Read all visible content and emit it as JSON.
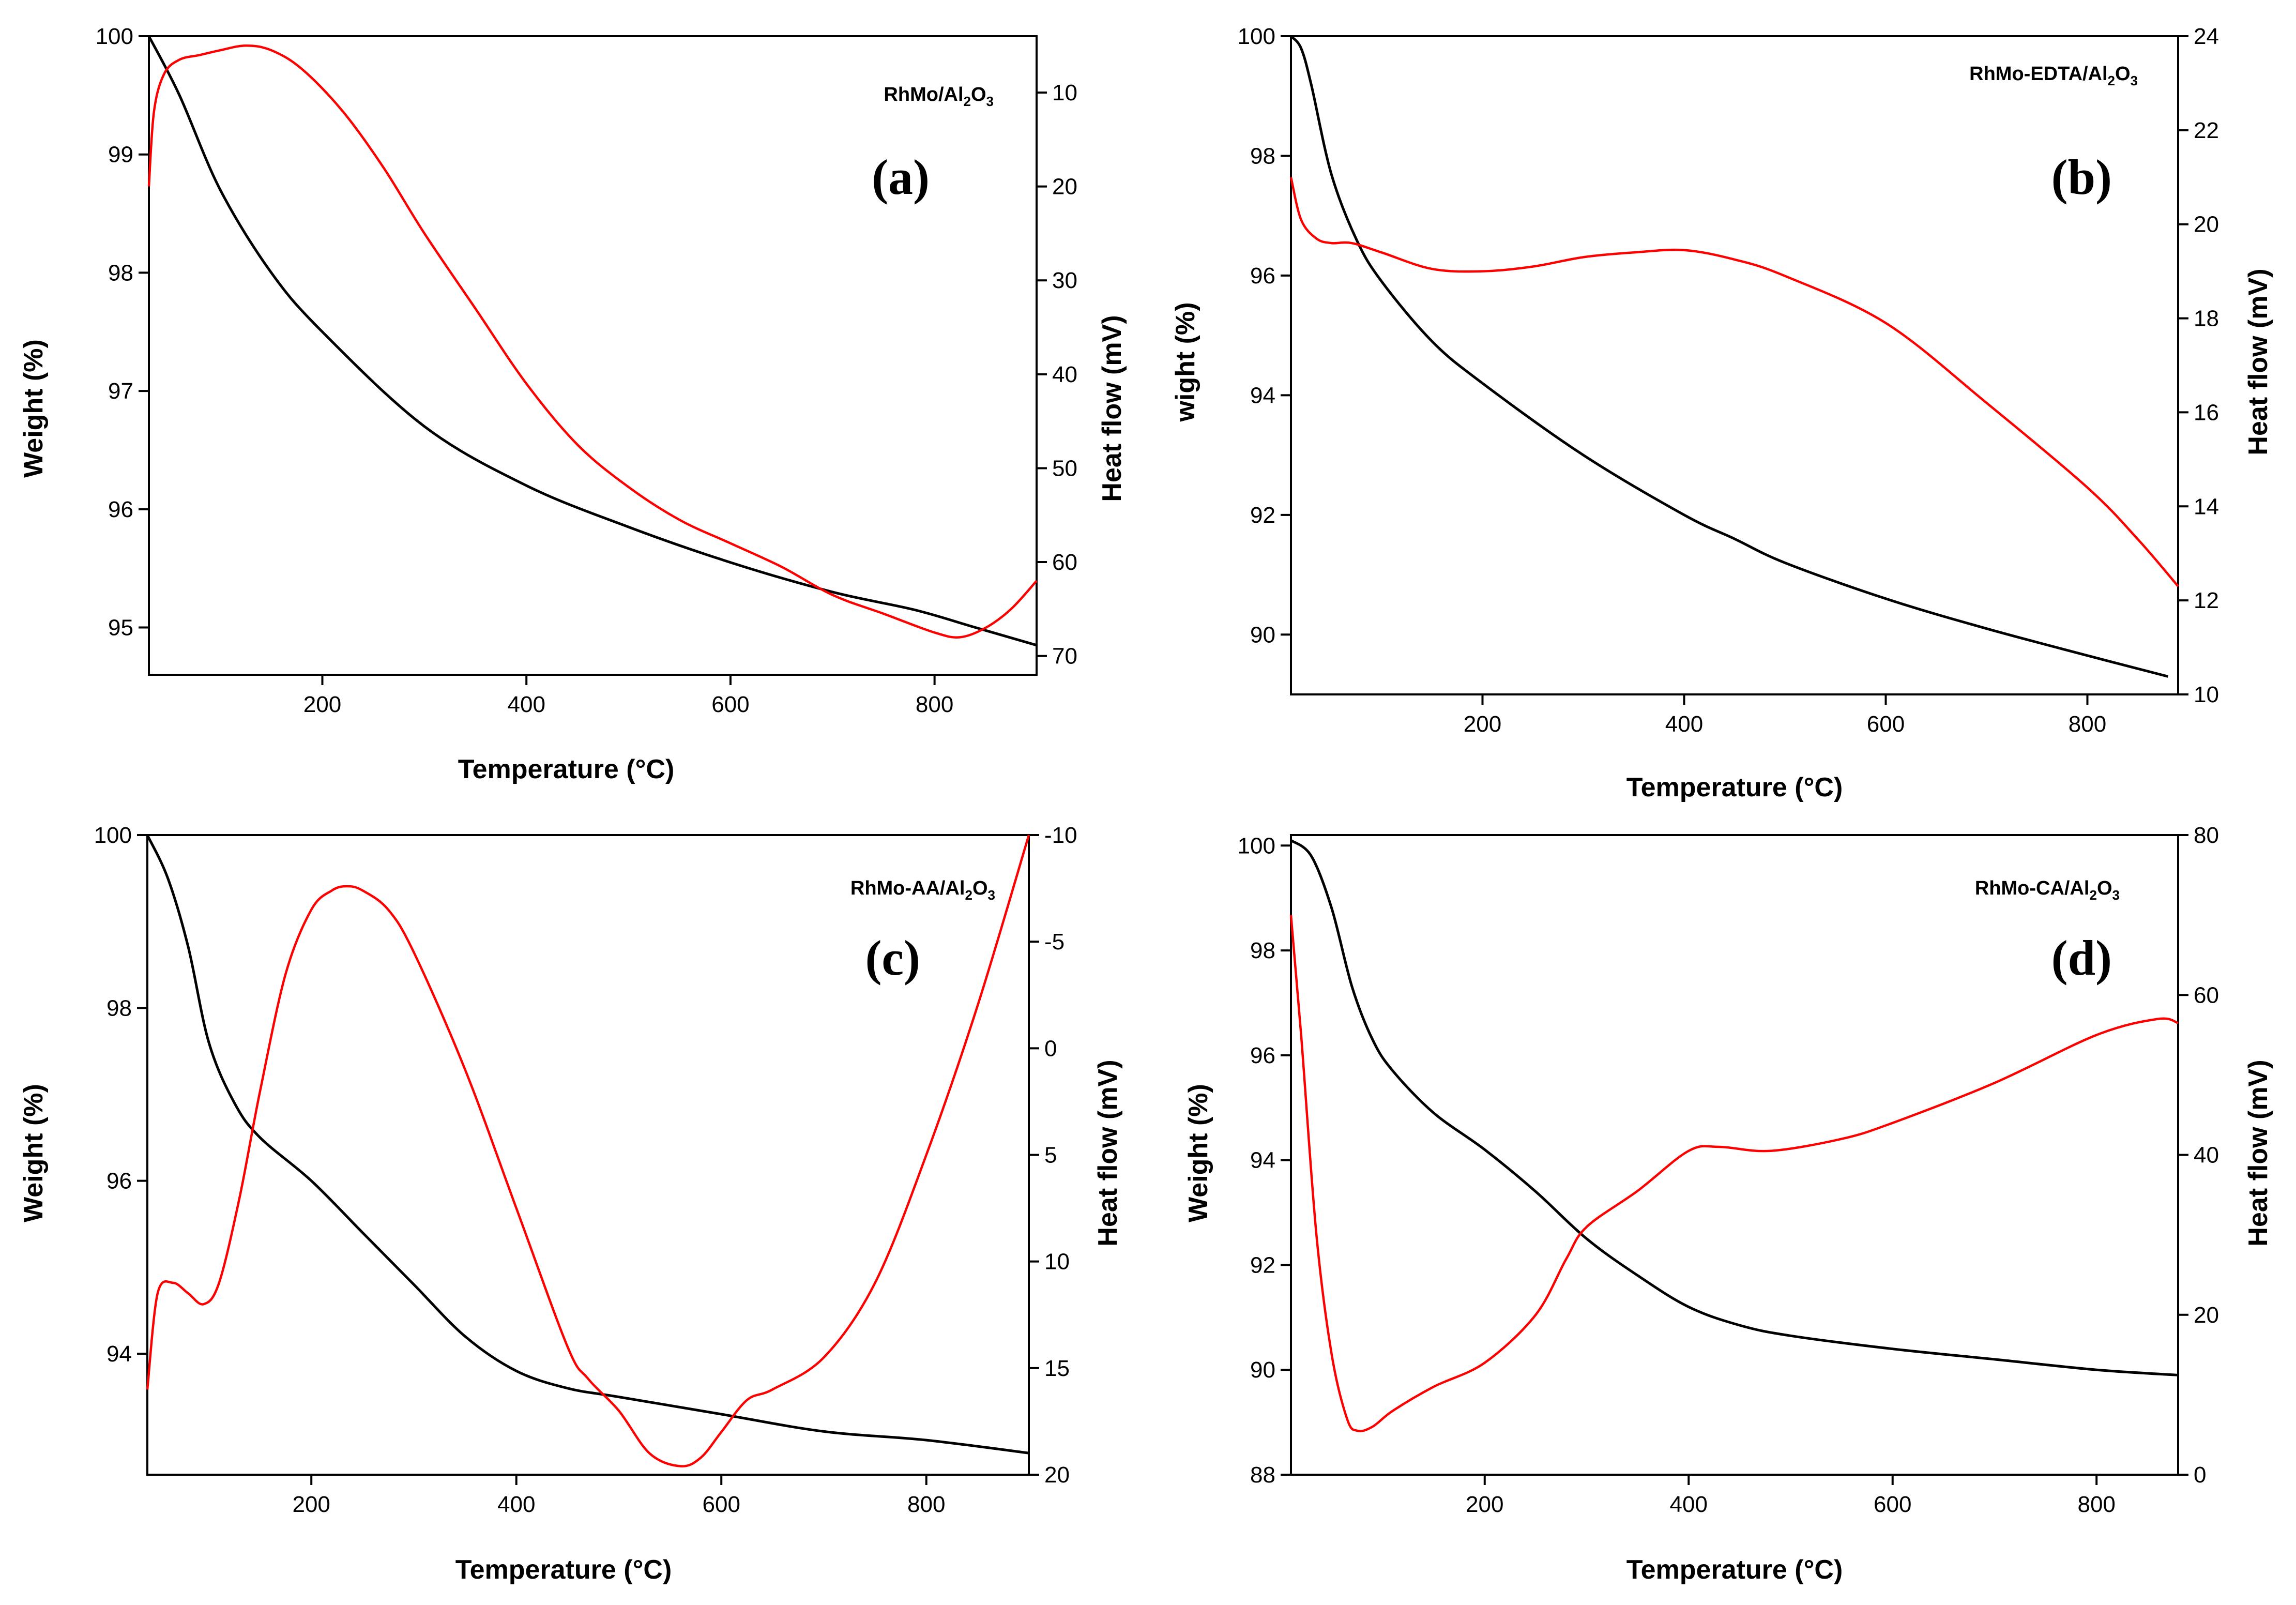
{
  "colors": {
    "weight_line": "#000000",
    "heat_flow_line": "#ff0000"
  },
  "chart_data": [
    {
      "type": "line",
      "panel_label": "(a)",
      "sample_label": {
        "main": "RhMo/Al",
        "sub1": "2",
        "mid": "O",
        "sub2": "3"
      },
      "xlabel": "Temperature (°C)",
      "ylabel_left": "Weight (%)",
      "ylabel_right": "Heat flow (mV)",
      "xlim": [
        30,
        900
      ],
      "ylim_left": [
        94.6,
        100
      ],
      "ylim_right": [
        4,
        72
      ],
      "right_inverted": true,
      "xticks": [
        "200",
        "400",
        "600",
        "800"
      ],
      "xtick_values": [
        200,
        400,
        600,
        800
      ],
      "yticks_left": [
        "95",
        "96",
        "97",
        "98",
        "99",
        "100"
      ],
      "ytick_left_values": [
        95,
        96,
        97,
        98,
        99,
        100
      ],
      "yticks_right": [
        "10",
        "20",
        "30",
        "40",
        "50",
        "60",
        "70"
      ],
      "ytick_right_values": [
        10,
        20,
        30,
        40,
        50,
        60,
        70
      ],
      "series": [
        {
          "name": "Weight",
          "axis": "left",
          "x": [
            30,
            60,
            100,
            150,
            200,
            300,
            400,
            500,
            600,
            700,
            780,
            840,
            900
          ],
          "y": [
            100,
            99.5,
            98.7,
            98.0,
            97.5,
            96.7,
            96.2,
            95.85,
            95.55,
            95.3,
            95.15,
            95.0,
            94.85
          ]
        },
        {
          "name": "Heat flow",
          "axis": "right",
          "x": [
            30,
            35,
            45,
            60,
            80,
            100,
            125,
            150,
            180,
            220,
            260,
            300,
            350,
            400,
            450,
            500,
            550,
            600,
            650,
            700,
            750,
            800,
            825,
            850,
            875,
            900
          ],
          "y": [
            20,
            12,
            8,
            6.5,
            6,
            5.5,
            5,
            5.5,
            7.5,
            12,
            18,
            25,
            33,
            41,
            47.5,
            52,
            55.5,
            58,
            60.5,
            63.5,
            65.5,
            67.5,
            68,
            67,
            65,
            62
          ]
        }
      ]
    },
    {
      "type": "line",
      "panel_label": "(b)",
      "sample_label": {
        "main": "RhMo-EDTA/Al",
        "sub1": "2",
        "mid": "O",
        "sub2": "3"
      },
      "xlabel": "Temperature (°C)",
      "ylabel_left": "wight (%)",
      "ylabel_right": "Heat flow (mV)",
      "xlim": [
        10,
        890
      ],
      "ylim_left": [
        89,
        100
      ],
      "ylim_right": [
        10,
        24
      ],
      "right_inverted": false,
      "xticks": [
        "200",
        "400",
        "600",
        "800"
      ],
      "xtick_values": [
        200,
        400,
        600,
        800
      ],
      "yticks_left": [
        "90",
        "92",
        "94",
        "96",
        "98",
        "100"
      ],
      "ytick_left_values": [
        90,
        92,
        94,
        96,
        98,
        100
      ],
      "yticks_right": [
        "10",
        "12",
        "14",
        "16",
        "18",
        "20",
        "22",
        "24"
      ],
      "ytick_right_values": [
        10,
        12,
        14,
        16,
        18,
        20,
        22,
        24
      ],
      "series": [
        {
          "name": "Weight",
          "axis": "left",
          "x": [
            10,
            20,
            30,
            50,
            75,
            100,
            150,
            200,
            300,
            400,
            450,
            500,
            600,
            700,
            800,
            880
          ],
          "y": [
            100,
            99.8,
            99.2,
            97.7,
            96.6,
            95.9,
            94.9,
            94.2,
            93.0,
            92.0,
            91.6,
            91.2,
            90.6,
            90.1,
            89.65,
            89.3
          ]
        },
        {
          "name": "Heat flow",
          "axis": "right",
          "x": [
            10,
            20,
            35,
            50,
            70,
            100,
            150,
            200,
            250,
            300,
            350,
            400,
            450,
            500,
            600,
            700,
            800,
            850,
            890
          ],
          "y": [
            21,
            20.1,
            19.7,
            19.6,
            19.6,
            19.4,
            19.05,
            19.0,
            19.1,
            19.3,
            19.4,
            19.45,
            19.25,
            18.9,
            17.9,
            16.2,
            14.4,
            13.3,
            12.3
          ]
        }
      ]
    },
    {
      "type": "line",
      "panel_label": "(c)",
      "sample_label": {
        "main": "RhMo-AA/Al",
        "sub1": "2",
        "mid": "O",
        "sub2": "3"
      },
      "xlabel": "Temperature (°C)",
      "ylabel_left": "Weight (%)",
      "ylabel_right": "Heat flow (mV)",
      "xlim": [
        40,
        900
      ],
      "ylim_left": [
        92.6,
        100
      ],
      "ylim_right": [
        -10,
        20
      ],
      "right_inverted": true,
      "xticks": [
        "200",
        "400",
        "600",
        "800"
      ],
      "xtick_values": [
        200,
        400,
        600,
        800
      ],
      "yticks_left": [
        "94",
        "96",
        "98",
        "100"
      ],
      "ytick_left_values": [
        94,
        96,
        98,
        100
      ],
      "yticks_right": [
        "-10",
        "-5",
        "0",
        "5",
        "10",
        "15",
        "20"
      ],
      "ytick_right_values": [
        -10,
        -5,
        0,
        5,
        10,
        15,
        20
      ],
      "series": [
        {
          "name": "Weight",
          "axis": "left",
          "x": [
            40,
            60,
            80,
            100,
            125,
            150,
            200,
            250,
            300,
            350,
            400,
            450,
            500,
            600,
            700,
            800,
            900
          ],
          "y": [
            100,
            99.5,
            98.7,
            97.6,
            96.9,
            96.5,
            96.0,
            95.4,
            94.8,
            94.2,
            93.8,
            93.6,
            93.5,
            93.3,
            93.1,
            93.0,
            92.85
          ]
        },
        {
          "name": "Heat flow",
          "axis": "right",
          "x": [
            40,
            50,
            65,
            80,
            95,
            110,
            130,
            150,
            175,
            200,
            220,
            235,
            250,
            275,
            300,
            350,
            400,
            450,
            470,
            500,
            530,
            560,
            580,
            600,
            625,
            650,
            700,
            750,
            800,
            850,
            900
          ],
          "y": [
            16,
            11.5,
            11,
            11.5,
            12,
            11,
            7,
            2,
            -3.5,
            -6.5,
            -7.4,
            -7.6,
            -7.4,
            -6.5,
            -4.5,
            1,
            7.5,
            14,
            15.5,
            17,
            19,
            19.6,
            19.2,
            18,
            16.5,
            16,
            14.5,
            11,
            5,
            -2,
            -10
          ]
        }
      ]
    },
    {
      "type": "line",
      "panel_label": "(d)",
      "sample_label": {
        "main": "RhMo-CA/Al",
        "sub1": "2",
        "mid": "O",
        "sub2": "3"
      },
      "xlabel": "Temperature (°C)",
      "ylabel_left": "Weight (%)",
      "ylabel_right": "Heat flow (mV)",
      "xlim": [
        10,
        880
      ],
      "ylim_left": [
        88,
        100.2
      ],
      "ylim_right": [
        0,
        80
      ],
      "right_inverted": false,
      "xticks": [
        "200",
        "400",
        "600",
        "800"
      ],
      "xtick_values": [
        200,
        400,
        600,
        800
      ],
      "yticks_left": [
        "88",
        "90",
        "92",
        "94",
        "96",
        "98",
        "100"
      ],
      "ytick_left_values": [
        88,
        90,
        92,
        94,
        96,
        98,
        100
      ],
      "yticks_right": [
        "0",
        "20",
        "40",
        "60",
        "80"
      ],
      "ytick_right_values": [
        0,
        20,
        40,
        60,
        80
      ],
      "series": [
        {
          "name": "Weight",
          "axis": "left",
          "x": [
            10,
            30,
            50,
            70,
            90,
            110,
            150,
            200,
            250,
            300,
            350,
            400,
            450,
            500,
            600,
            700,
            800,
            880
          ],
          "y": [
            100.1,
            99.8,
            98.8,
            97.3,
            96.3,
            95.7,
            94.9,
            94.2,
            93.4,
            92.5,
            91.8,
            91.2,
            90.85,
            90.65,
            90.4,
            90.2,
            90.0,
            89.9
          ]
        },
        {
          "name": "Heat flow",
          "axis": "right",
          "x": [
            10,
            20,
            35,
            50,
            65,
            75,
            90,
            110,
            150,
            200,
            250,
            280,
            300,
            350,
            400,
            430,
            480,
            550,
            600,
            700,
            800,
            860,
            880
          ],
          "y": [
            70,
            55,
            30,
            15,
            7,
            5.5,
            6,
            8,
            11,
            14,
            20,
            27,
            31,
            35.5,
            40.5,
            41,
            40.5,
            42,
            44,
            49,
            55,
            57,
            56.5
          ]
        }
      ]
    }
  ]
}
